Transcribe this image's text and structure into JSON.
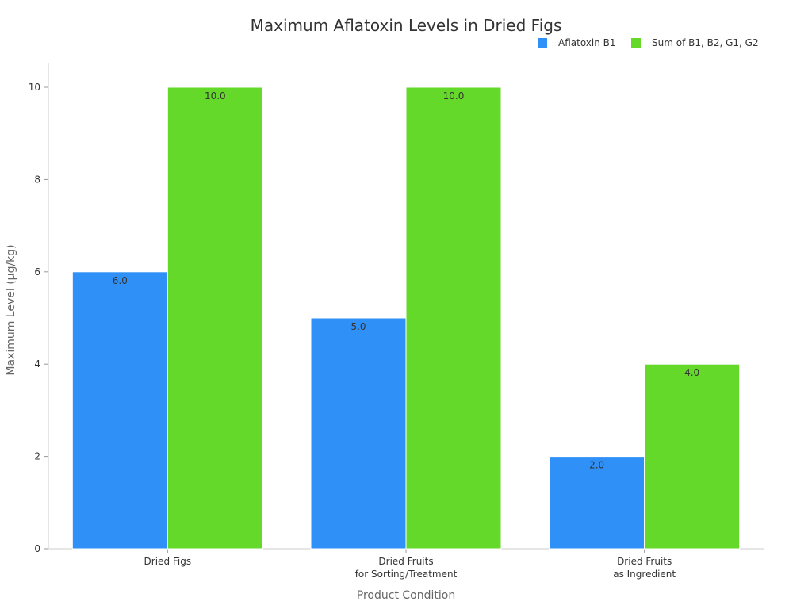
{
  "chart_data": {
    "type": "bar",
    "title": "Maximum Aflatoxin Levels in Dried Figs",
    "xlabel": "Product Condition",
    "ylabel": "Maximum Level (µg/kg)",
    "categories": [
      [
        "Dried Figs"
      ],
      [
        "Dried Fruits",
        "for Sorting/Treatment"
      ],
      [
        "Dried Fruits",
        "as Ingredient"
      ]
    ],
    "series": [
      {
        "name": "Aflatoxin B1",
        "color": "#2f90f7",
        "values": [
          6.0,
          5.0,
          2.0
        ]
      },
      {
        "name": "Sum of B1, B2, G1, G2",
        "color": "#65d92a",
        "values": [
          10.0,
          10.0,
          4.0
        ]
      }
    ],
    "ylim": [
      0,
      10.5
    ],
    "yticks": [
      0,
      2,
      4,
      6,
      8,
      10
    ],
    "grid": false,
    "legend": "top-right",
    "value_labels": true
  }
}
